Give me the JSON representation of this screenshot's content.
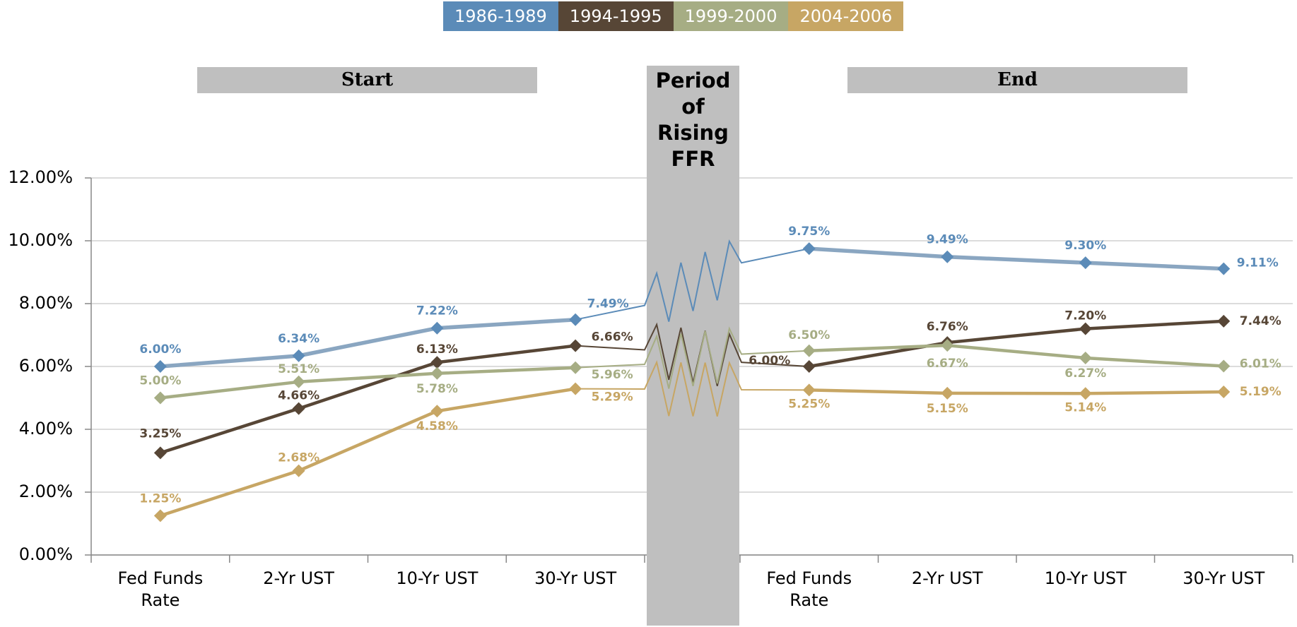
{
  "chart_data": {
    "type": "line",
    "section_labels": [
      "Start",
      "End"
    ],
    "band_label": "Period of Rising FFR",
    "categories": [
      "Fed Funds Rate",
      "2-Yr UST",
      "10-Yr UST",
      "30-Yr UST",
      null,
      "Fed Funds Rate",
      "2-Yr UST",
      "10-Yr UST",
      "30-Yr UST"
    ],
    "ylim": [
      0,
      12
    ],
    "yticks": [
      {
        "value": 0,
        "label": "0.00%"
      },
      {
        "value": 2,
        "label": "2.00%"
      },
      {
        "value": 4,
        "label": "4.00%"
      },
      {
        "value": 6,
        "label": "6.00%"
      },
      {
        "value": 8,
        "label": "8.00%"
      },
      {
        "value": 10,
        "label": "10.00%"
      },
      {
        "value": 12,
        "label": "12.00%"
      }
    ],
    "grid": true,
    "legend": "top",
    "series": [
      {
        "name": "1986-1989",
        "color": "#5b8bb8",
        "line_color": "#8aa6c1",
        "values": [
          6.0,
          6.34,
          7.22,
          7.49,
          null,
          9.75,
          9.49,
          9.3,
          9.11
        ],
        "value_labels": [
          "6.00%",
          "6.34%",
          "7.22%",
          "7.49%",
          null,
          "9.75%",
          "9.49%",
          "9.30%",
          "9.11%"
        ]
      },
      {
        "name": "1994-1995",
        "color": "#574636",
        "line_color": "#574636",
        "values": [
          3.25,
          4.66,
          6.13,
          6.66,
          null,
          6.0,
          6.76,
          7.2,
          7.44
        ],
        "value_labels": [
          "3.25%",
          "4.66%",
          "6.13%",
          "6.66%",
          null,
          "6.00%",
          "6.76%",
          "7.20%",
          "7.44%"
        ]
      },
      {
        "name": "1999-2000",
        "color": "#a6ad84",
        "line_color": "#a6ad84",
        "values": [
          5.0,
          5.51,
          5.78,
          5.96,
          null,
          6.5,
          6.67,
          6.27,
          6.01
        ],
        "value_labels": [
          "5.00%",
          "5.51%",
          "5.78%",
          "5.96%",
          null,
          "6.50%",
          "6.67%",
          "6.27%",
          "6.01%"
        ]
      },
      {
        "name": "2004-2006",
        "color": "#c7a664",
        "line_color": "#c7a664",
        "values": [
          1.25,
          2.68,
          4.58,
          5.29,
          null,
          5.25,
          5.15,
          5.14,
          5.19
        ],
        "value_labels": [
          "1.25%",
          "2.68%",
          "4.58%",
          "5.29%",
          null,
          "5.25%",
          "5.15%",
          "5.14%",
          "5.19%"
        ]
      }
    ]
  }
}
